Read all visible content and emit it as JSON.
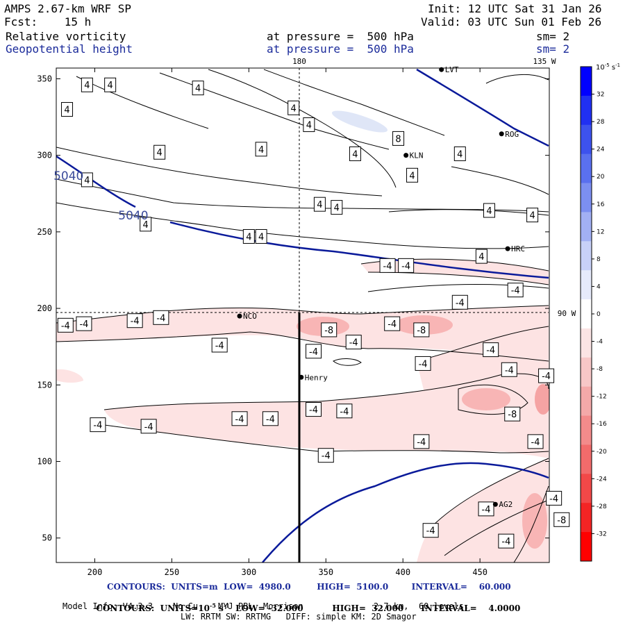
{
  "header": {
    "model": "AMPS 2.67-km WRF SP",
    "init": "Init: 12 UTC Sat 31 Jan 26",
    "fcst": "Fcst:    15 h",
    "valid": "Valid: 03 UTC Sun 01 Feb 26",
    "field1": "Relative vorticity",
    "field1_level": "at pressure =  500 hPa",
    "field1_sm": "sm= 2",
    "field2": "Geopotential height",
    "field2_level": "at pressure =  500 hPa",
    "field2_sm": "sm= 2"
  },
  "footer": {
    "line1": "CONTOURS:  UNITS=m  LOW=  4980.0         HIGH=  5100.0        INTERVAL=    60.000",
    "line2a": "CONTOURS:  UNITS=10",
    "line2b": "-5",
    "line2c": " s",
    "line2d": "-1",
    "line2e": "  LOW= -32.000          HIGH=  32.000      INTERVAL=    4.0000",
    "line3": "Model Info: V4.3.3    No Cu    MYJ PBL  Morrison              2.7 km,  60 levels,",
    "line4": "LW: RRTM SW: RRTMG   DIFF: simple KM: 2D Smagor"
  },
  "colors": {
    "height_contour": "#0a1a9a",
    "vort_contour": "#000000",
    "neg_light": "#fde3e3",
    "neg_mid": "#f8b5b5",
    "pos_light": "#dfe6f7"
  },
  "chart_data": {
    "type": "contour_map",
    "x_ticks": [
      200,
      250,
      300,
      350,
      400,
      450
    ],
    "y_ticks": [
      50,
      100,
      150,
      200,
      250,
      300,
      350
    ],
    "xlim": [
      175,
      495
    ],
    "ylim": [
      34,
      357
    ],
    "top_labels": [
      "180",
      "135 W"
    ],
    "right_label": "90 W",
    "colorbar": {
      "unit_base": "10",
      "unit_exp": "-5",
      "unit_rest": " s",
      "unit_exp2": "-1",
      "ticks": [
        "32",
        "28",
        "24",
        "20",
        "16",
        "12",
        "8",
        "4",
        "0",
        "-4",
        "-8",
        "-12",
        "-16",
        "-20",
        "-24",
        "-28",
        "-32"
      ],
      "colors": [
        "#0000ff",
        "#2030f2",
        "#3d52ee",
        "#5a70ef",
        "#7c8ff1",
        "#a2b0f4",
        "#c8d1f8",
        "#e6eafb",
        "#ffffff",
        "#fbe4e4",
        "#f7c7c7",
        "#f4a9a9",
        "#f38b8b",
        "#f26b6b",
        "#f24848",
        "#f42424",
        "#ff0000"
      ]
    },
    "stations": [
      {
        "name": "LVT",
        "x": 425,
        "y": 356
      },
      {
        "name": "ROG",
        "x": 464,
        "y": 314
      },
      {
        "name": "KLN",
        "x": 402,
        "y": 300
      },
      {
        "name": "HRC",
        "x": 468,
        "y": 239
      },
      {
        "name": "NCO",
        "x": 294,
        "y": 195
      },
      {
        "name": "Henry",
        "x": 334,
        "y": 155
      },
      {
        "name": "AG2",
        "x": 460,
        "y": 72
      }
    ],
    "height_contour_labels": [
      {
        "text": "5040",
        "x": 183,
        "y": 284
      },
      {
        "text": "5040",
        "x": 225,
        "y": 258
      }
    ],
    "vorticity_labels": [
      {
        "text": "4",
        "x": 195,
        "y": 346
      },
      {
        "text": "4",
        "x": 210,
        "y": 346
      },
      {
        "text": "4",
        "x": 267,
        "y": 344
      },
      {
        "text": "4",
        "x": 182,
        "y": 330
      },
      {
        "text": "4",
        "x": 242,
        "y": 302
      },
      {
        "text": "4",
        "x": 329,
        "y": 331
      },
      {
        "text": "4",
        "x": 339,
        "y": 320
      },
      {
        "text": "4",
        "x": 308,
        "y": 304
      },
      {
        "text": "8",
        "x": 397,
        "y": 311
      },
      {
        "text": "4",
        "x": 369,
        "y": 301
      },
      {
        "text": "4",
        "x": 406,
        "y": 287
      },
      {
        "text": "4",
        "x": 437,
        "y": 301
      },
      {
        "text": "4",
        "x": 195,
        "y": 284
      },
      {
        "text": "4",
        "x": 346,
        "y": 268
      },
      {
        "text": "4",
        "x": 357,
        "y": 266
      },
      {
        "text": "4",
        "x": 456,
        "y": 264
      },
      {
        "text": "4",
        "x": 484,
        "y": 261
      },
      {
        "text": "4",
        "x": 233,
        "y": 255
      },
      {
        "text": "4",
        "x": 300,
        "y": 247
      },
      {
        "text": "4",
        "x": 308,
        "y": 247
      },
      {
        "text": "4",
        "x": 451,
        "y": 234
      },
      {
        "text": "-4",
        "x": 390,
        "y": 228
      },
      {
        "text": "-4",
        "x": 402,
        "y": 228
      },
      {
        "text": "-4",
        "x": 473,
        "y": 212
      },
      {
        "text": "-4",
        "x": 437,
        "y": 204
      },
      {
        "text": "-4",
        "x": 193,
        "y": 190
      },
      {
        "text": "-4",
        "x": 181,
        "y": 189
      },
      {
        "text": "-4",
        "x": 226,
        "y": 192
      },
      {
        "text": "-4",
        "x": 243,
        "y": 194
      },
      {
        "text": "-4",
        "x": 393,
        "y": 190
      },
      {
        "text": "-8",
        "x": 352,
        "y": 186
      },
      {
        "text": "-8",
        "x": 412,
        "y": 186
      },
      {
        "text": "-4",
        "x": 368,
        "y": 178
      },
      {
        "text": "-4",
        "x": 281,
        "y": 176
      },
      {
        "text": "-4",
        "x": 342,
        "y": 172
      },
      {
        "text": "-4",
        "x": 457,
        "y": 173
      },
      {
        "text": "-4",
        "x": 413,
        "y": 164
      },
      {
        "text": "-4",
        "x": 469,
        "y": 160
      },
      {
        "text": "-4",
        "x": 493,
        "y": 156
      },
      {
        "text": "-4",
        "x": 342,
        "y": 134
      },
      {
        "text": "-4",
        "x": 362,
        "y": 133
      },
      {
        "text": "-4",
        "x": 294,
        "y": 128
      },
      {
        "text": "-4",
        "x": 314,
        "y": 128
      },
      {
        "text": "-8",
        "x": 471,
        "y": 131
      },
      {
        "text": "-4",
        "x": 202,
        "y": 124
      },
      {
        "text": "-4",
        "x": 235,
        "y": 123
      },
      {
        "text": "-4",
        "x": 412,
        "y": 113
      },
      {
        "text": "-4",
        "x": 486,
        "y": 113
      },
      {
        "text": "-4",
        "x": 350,
        "y": 104
      },
      {
        "text": "-4",
        "x": 498,
        "y": 76
      },
      {
        "text": "-4",
        "x": 454,
        "y": 69
      },
      {
        "text": "-8",
        "x": 503,
        "y": 62
      },
      {
        "text": "-4",
        "x": 418,
        "y": 55
      },
      {
        "text": "-4",
        "x": 467,
        "y": 48
      }
    ]
  }
}
